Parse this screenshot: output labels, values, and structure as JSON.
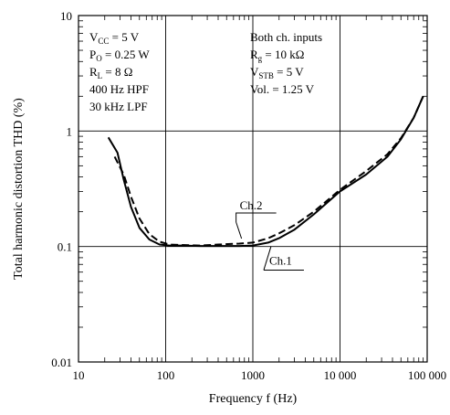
{
  "chart_data": {
    "type": "line",
    "xscale": "log",
    "yscale": "log",
    "xlim": [
      10,
      100000
    ],
    "ylim": [
      0.01,
      10
    ],
    "grid": true,
    "xlabel": "Frequency  f  (Hz)",
    "ylabel": "Total harmonic distortion  THD  (%)",
    "x_tick_labels": [
      "10",
      "100",
      "1000",
      "10 000",
      "100 000"
    ],
    "y_tick_labels": [
      "10",
      "1",
      "0.1",
      "0.01"
    ],
    "conditions_left": [
      {
        "main": "V",
        "sub": "CC",
        "rest": " = 5 V"
      },
      {
        "main": "P",
        "sub": "O",
        "rest": " = 0.25 W"
      },
      {
        "main": "R",
        "sub": "L",
        "rest": " = 8 Ω"
      },
      {
        "main": "400 Hz HPF",
        "sub": "",
        "rest": ""
      },
      {
        "main": "30 kHz LPF",
        "sub": "",
        "rest": ""
      }
    ],
    "conditions_right": [
      {
        "main": "Both ch. inputs",
        "sub": "",
        "rest": ""
      },
      {
        "main": "R",
        "sub": "g",
        "rest": " = 10 kΩ"
      },
      {
        "main": "V",
        "sub": "STB",
        "rest": " = 5 V"
      },
      {
        "main": "Vol. = 1.25 V",
        "sub": "",
        "rest": ""
      }
    ],
    "series": [
      {
        "name": "Ch.1",
        "style": "solid",
        "x": [
          22,
          28,
          33,
          40,
          50,
          65,
          85,
          110,
          150,
          250,
          400,
          700,
          1000,
          1500,
          2000,
          3000,
          5000,
          10000,
          20000,
          35000,
          50000,
          70000,
          90000
        ],
        "y": [
          0.88,
          0.65,
          0.38,
          0.22,
          0.145,
          0.115,
          0.104,
          0.102,
          0.102,
          0.101,
          0.101,
          0.101,
          0.102,
          0.108,
          0.118,
          0.14,
          0.19,
          0.3,
          0.42,
          0.6,
          0.85,
          1.3,
          2.0
        ]
      },
      {
        "name": "Ch.2",
        "style": "dashed",
        "x": [
          26,
          33,
          40,
          50,
          65,
          85,
          110,
          150,
          250,
          400,
          700,
          1000,
          1500,
          2000,
          3000,
          5000,
          10000,
          20000,
          35000,
          50000,
          70000,
          90000
        ],
        "y": [
          0.6,
          0.42,
          0.27,
          0.175,
          0.128,
          0.11,
          0.104,
          0.103,
          0.102,
          0.104,
          0.106,
          0.108,
          0.118,
          0.13,
          0.153,
          0.2,
          0.31,
          0.45,
          0.63,
          0.87,
          1.3,
          2.0
        ]
      }
    ],
    "annotations": [
      {
        "text": "Ch.2",
        "series": "Ch.2"
      },
      {
        "text": "Ch.1",
        "series": "Ch.1"
      }
    ]
  }
}
